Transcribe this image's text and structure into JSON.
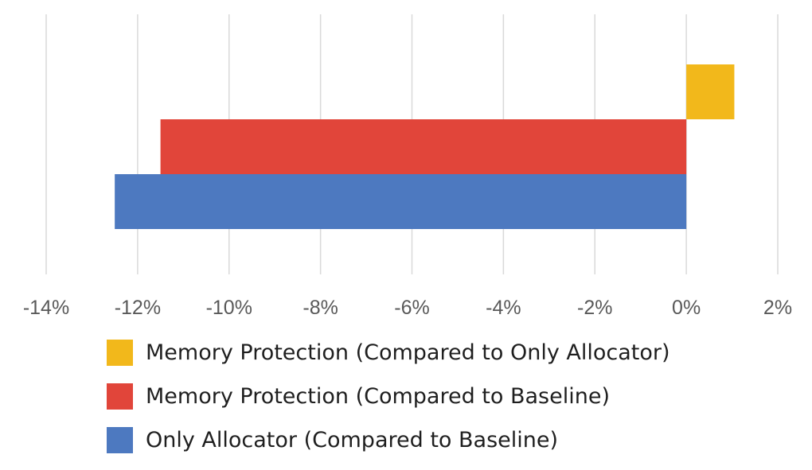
{
  "chart_data": {
    "type": "bar",
    "orientation": "horizontal",
    "title": "",
    "xlabel": "",
    "ylabel": "",
    "xlim": [
      -14,
      2
    ],
    "x_ticks": [
      -14,
      -12,
      -10,
      -8,
      -6,
      -4,
      -2,
      0,
      2
    ],
    "x_tick_labels": [
      "-14%",
      "-12%",
      "-10%",
      "-8%",
      "-6%",
      "-4%",
      "-2%",
      "0%",
      "2%"
    ],
    "unit": "%",
    "grid": true,
    "legend_position": "bottom",
    "series": [
      {
        "name": "Memory Protection (Compared to Only Allocator)",
        "value": 1.05,
        "color": "#f2b81b"
      },
      {
        "name": "Memory Protection (Compared to Baseline)",
        "value": -11.5,
        "color": "#e1453a"
      },
      {
        "name": "Only Allocator (Compared to Baseline)",
        "value": -12.5,
        "color": "#4d79c0"
      }
    ]
  }
}
